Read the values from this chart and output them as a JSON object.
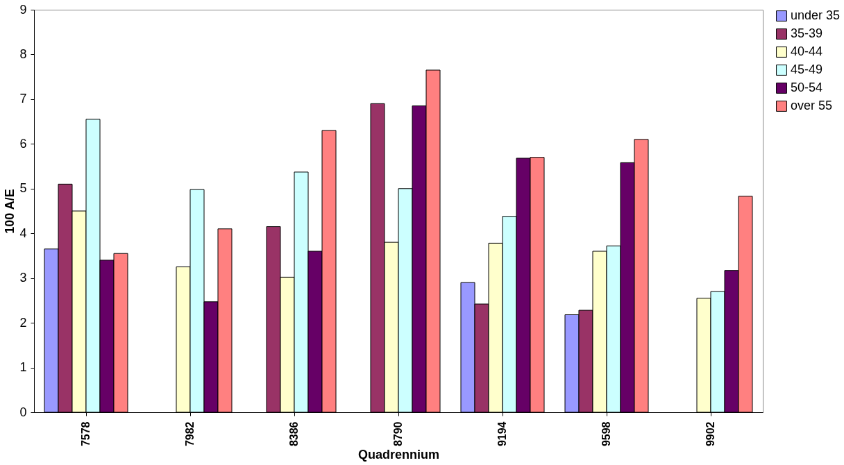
{
  "chart_data": {
    "type": "bar",
    "xlabel": "Quadrennium",
    "ylabel": "100 A/E",
    "categories": [
      "7578",
      "7982",
      "8386",
      "8790",
      "9194",
      "9598",
      "9902"
    ],
    "series": [
      {
        "name": "under 35",
        "color": "#9999ff",
        "values": [
          3.65,
          null,
          null,
          null,
          2.9,
          2.18,
          null
        ]
      },
      {
        "name": "35-39",
        "color": "#993366",
        "values": [
          5.1,
          null,
          4.15,
          6.9,
          2.42,
          2.28,
          null
        ]
      },
      {
        "name": "40-44",
        "color": "#ffffcc",
        "values": [
          4.5,
          3.25,
          3.02,
          3.8,
          3.78,
          3.6,
          2.55
        ]
      },
      {
        "name": "45-49",
        "color": "#ccffff",
        "values": [
          6.55,
          4.98,
          5.37,
          5.0,
          4.38,
          3.72,
          2.7
        ]
      },
      {
        "name": "50-54",
        "color": "#660066",
        "values": [
          3.4,
          2.47,
          3.6,
          6.85,
          5.68,
          5.58,
          3.17
        ]
      },
      {
        "name": "over 55",
        "color": "#ff8080",
        "values": [
          3.55,
          4.1,
          6.3,
          7.65,
          5.7,
          6.1,
          4.83
        ]
      }
    ],
    "ylim": [
      0,
      9
    ],
    "yticks": [
      0,
      1,
      2,
      3,
      4,
      5,
      6,
      7,
      8,
      9
    ],
    "grid": false,
    "legend": "right"
  }
}
